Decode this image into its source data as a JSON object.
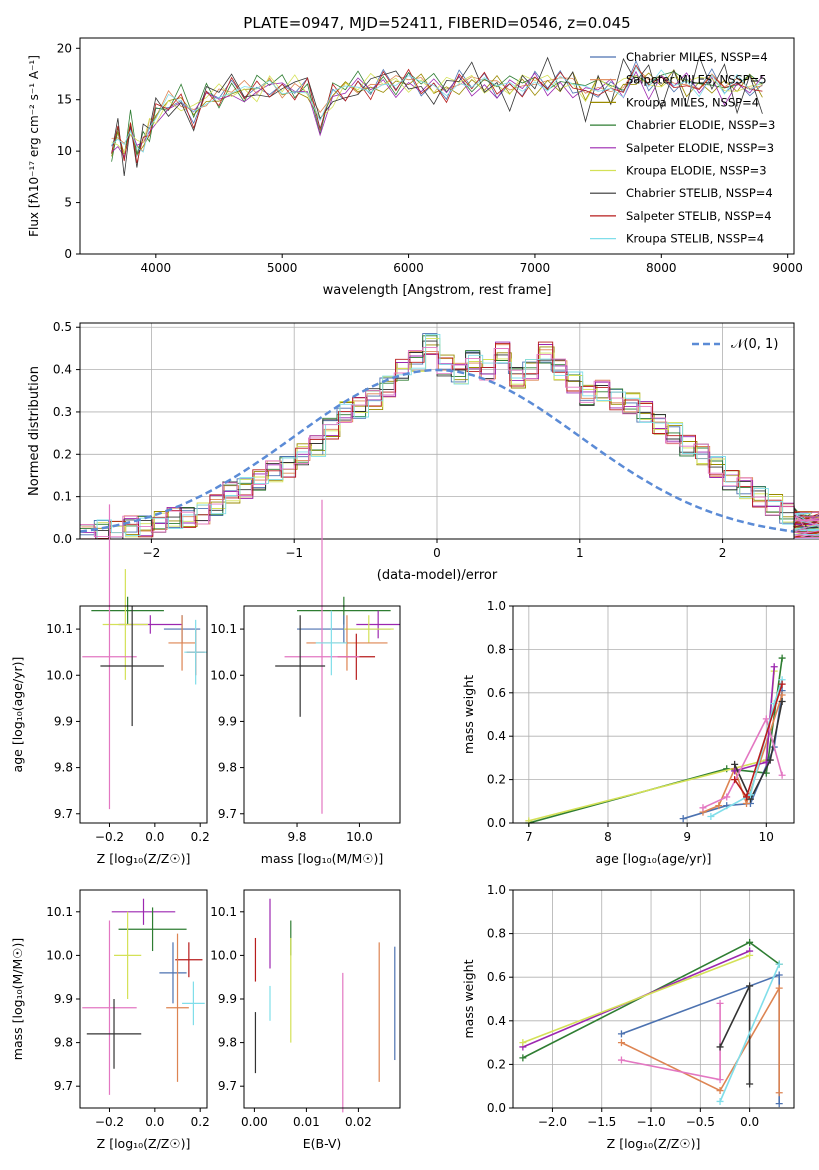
{
  "chart_data": [
    {
      "type": "line",
      "title": "PLATE=0947, MJD=52411, FIBERID=0546, z=0.045",
      "xlabel": "wavelength [Angstrom, rest frame]",
      "ylabel": "Flux [fλ10⁻¹⁷ erg cm⁻² s⁻¹ A⁻¹]",
      "xlim": [
        3400,
        9050
      ],
      "ylim": [
        0,
        21
      ],
      "xticks": [
        4000,
        5000,
        6000,
        7000,
        8000,
        9000
      ],
      "yticks": [
        0,
        5,
        10,
        15,
        20
      ],
      "legend_position": "top-right",
      "series": [
        {
          "name": "Chabrier MILES, NSSP=4",
          "color": "#4c72b0"
        },
        {
          "name": "Salpeter MILES, NSSP=5",
          "color": "#dd8452"
        },
        {
          "name": "Kroupa MILES, NSSP=4",
          "color": "#9a8a00"
        },
        {
          "name": "Chabrier ELODIE, NSSP=3",
          "color": "#2e7d32"
        },
        {
          "name": "Salpeter ELODIE, NSSP=3",
          "color": "#9c27b0"
        },
        {
          "name": "Kroupa ELODIE, NSSP=3",
          "color": "#d4e157"
        },
        {
          "name": "Chabrier STELIB, NSSP=4",
          "color": "#333333"
        },
        {
          "name": "Salpeter STELIB, NSSP=4",
          "color": "#b71c1c"
        },
        {
          "name": "Kroupa STELIB, NSSP=4",
          "color": "#80deea"
        }
      ],
      "data_x": [
        3650,
        3700,
        3750,
        3800,
        3850,
        3900,
        3950,
        4000,
        4100,
        4200,
        4300,
        4400,
        4500,
        4600,
        4700,
        4800,
        4900,
        5000,
        5100,
        5200,
        5300,
        5400,
        5500,
        5600,
        5700,
        5800,
        5900,
        6000,
        6100,
        6200,
        6300,
        6400,
        6500,
        6600,
        6700,
        6800,
        6900,
        7000,
        7100,
        7200,
        7300,
        7400,
        7500,
        7600,
        7700,
        7800,
        7900,
        8000,
        8100,
        8200,
        8300,
        8400,
        8500,
        8600,
        8700,
        8800
      ],
      "data_y": [
        10,
        11.5,
        9.5,
        12.5,
        10,
        11,
        12,
        13.5,
        14.5,
        15,
        13.5,
        15.5,
        15.2,
        16,
        15.5,
        16,
        16.5,
        16.2,
        16,
        16,
        12.5,
        15.5,
        16,
        16.5,
        16.2,
        16.8,
        16.3,
        16.8,
        16.5,
        16.3,
        16,
        16.8,
        16.5,
        16.5,
        16.2,
        16.2,
        16.5,
        16.8,
        16.5,
        16.6,
        16.5,
        15.5,
        16.5,
        16,
        16.2,
        17.5,
        16.5,
        16.8,
        17,
        16.5,
        16.5,
        16.8,
        16,
        16.2,
        16.5,
        16.2
      ]
    },
    {
      "type": "bar",
      "xlabel": "(data-model)/error",
      "ylabel": "Normed distribution",
      "xlim": [
        -2.5,
        2.5
      ],
      "ylim": [
        0,
        0.51
      ],
      "xticks": [
        -2,
        -1,
        0,
        1,
        2
      ],
      "yticks": [
        0.0,
        0.1,
        0.2,
        0.3,
        0.4,
        0.5
      ],
      "grid": true,
      "legend": "𝒩(0, 1)",
      "legend_position": "top-right",
      "bin_width": 0.1,
      "bin_start": -2.5,
      "hist": [
        0.01,
        0.02,
        0.02,
        0.03,
        0.03,
        0.04,
        0.05,
        0.05,
        0.06,
        0.08,
        0.11,
        0.12,
        0.14,
        0.16,
        0.17,
        0.2,
        0.22,
        0.26,
        0.3,
        0.31,
        0.33,
        0.36,
        0.4,
        0.42,
        0.46,
        0.41,
        0.39,
        0.42,
        0.4,
        0.44,
        0.38,
        0.4,
        0.44,
        0.4,
        0.37,
        0.34,
        0.35,
        0.33,
        0.32,
        0.3,
        0.27,
        0.25,
        0.22,
        0.2,
        0.17,
        0.14,
        0.12,
        0.1,
        0.08,
        0.06,
        0.05,
        0.04,
        0.04,
        0.03,
        0.02,
        0.02,
        0.02
      ],
      "normal_curve": {
        "mean": 0,
        "std": 1
      }
    },
    {
      "type": "scatter",
      "xlabel": "Z [log₁₀(Z/Z☉)]",
      "ylabel": "age  [log₁₀(age/yr)]",
      "xlim": [
        -0.33,
        0.23
      ],
      "ylim": [
        9.68,
        10.15
      ],
      "xticks": [
        -0.2,
        0.0,
        0.2
      ],
      "yticks": [
        9.7,
        9.8,
        9.9,
        10.0,
        10.1
      ],
      "points": [
        {
          "x": -0.12,
          "y": 10.14,
          "xerr": 0.16,
          "yerr": 0.03,
          "color": "#2e7d32"
        },
        {
          "x": -0.02,
          "y": 10.11,
          "xerr": 0.14,
          "yerr": 0.02,
          "color": "#9c27b0"
        },
        {
          "x": 0.12,
          "y": 10.1,
          "xerr": 0.08,
          "yerr": 0.03,
          "color": "#4c72b0"
        },
        {
          "x": -0.13,
          "y": 10.11,
          "xerr": 0.1,
          "yerr": 0.12,
          "color": "#d4e157"
        },
        {
          "x": 0.12,
          "y": 10.07,
          "xerr": 0.06,
          "yerr": 0.06,
          "color": "#dd8452"
        },
        {
          "x": 0.18,
          "y": 10.05,
          "xerr": 0.04,
          "yerr": 0.05,
          "color": "#b71c1c"
        },
        {
          "x": 0.18,
          "y": 10.05,
          "xerr": 0.05,
          "yerr": 0.07,
          "color": "#80deea"
        },
        {
          "x": -0.2,
          "y": 10.04,
          "xerr": 0.12,
          "yerr": 0.33,
          "color": "#e377c2"
        },
        {
          "x": -0.1,
          "y": 10.02,
          "xerr": 0.14,
          "yerr": 0.13,
          "color": "#333333"
        }
      ]
    },
    {
      "type": "scatter",
      "xlabel": "mass [log₁₀(M/M☉)]",
      "ylabel": "",
      "xlim": [
        9.63,
        10.13
      ],
      "ylim": [
        9.68,
        10.15
      ],
      "xticks": [
        9.8,
        10.0
      ],
      "yticks": [
        9.7,
        9.8,
        9.9,
        10.0,
        10.1
      ],
      "points": [
        {
          "x": 9.95,
          "y": 10.14,
          "xerr": 0.15,
          "yerr": 0.03,
          "color": "#2e7d32"
        },
        {
          "x": 10.06,
          "y": 10.11,
          "xerr": 0.07,
          "yerr": 0.03,
          "color": "#9c27b0"
        },
        {
          "x": 9.95,
          "y": 10.1,
          "xerr": 0.15,
          "yerr": 0.03,
          "color": "#4c72b0"
        },
        {
          "x": 10.03,
          "y": 10.1,
          "xerr": 0.08,
          "yerr": 0.03,
          "color": "#d4e157"
        },
        {
          "x": 9.96,
          "y": 10.07,
          "xerr": 0.13,
          "yerr": 0.06,
          "color": "#dd8452"
        },
        {
          "x": 9.99,
          "y": 10.04,
          "xerr": 0.06,
          "yerr": 0.05,
          "color": "#b71c1c"
        },
        {
          "x": 9.88,
          "y": 10.04,
          "xerr": 0.12,
          "yerr": 0.34,
          "color": "#e377c2"
        },
        {
          "x": 9.91,
          "y": 10.07,
          "xerr": 0.05,
          "yerr": 0.07,
          "color": "#80deea"
        },
        {
          "x": 9.81,
          "y": 10.02,
          "xerr": 0.08,
          "yerr": 0.11,
          "color": "#333333"
        }
      ]
    },
    {
      "type": "line",
      "xlabel": "age  [log₁₀(age/yr)]",
      "ylabel": "mass weight",
      "xlim": [
        6.8,
        10.35
      ],
      "ylim": [
        0,
        1.0
      ],
      "xticks": [
        7,
        8,
        9,
        10
      ],
      "yticks": [
        0.0,
        0.2,
        0.4,
        0.6,
        0.8,
        1.0
      ],
      "grid": true,
      "series": [
        {
          "color": "#2e7d32",
          "x": [
            7.0,
            9.5,
            10.0,
            10.2
          ],
          "y": [
            0.0,
            0.25,
            0.23,
            0.76
          ]
        },
        {
          "color": "#d4e157",
          "x": [
            7.0,
            10.0,
            10.1
          ],
          "y": [
            0.01,
            0.29,
            0.7
          ]
        },
        {
          "color": "#4c72b0",
          "x": [
            8.95,
            9.5,
            9.8,
            10.1,
            10.2
          ],
          "y": [
            0.02,
            0.08,
            0.09,
            0.35,
            0.61
          ]
        },
        {
          "color": "#dd8452",
          "x": [
            9.2,
            9.4,
            9.6,
            9.75,
            10.2
          ],
          "y": [
            0.05,
            0.08,
            0.25,
            0.09,
            0.59
          ]
        },
        {
          "color": "#9c27b0",
          "x": [
            9.6,
            10.0,
            10.1
          ],
          "y": [
            0.24,
            0.28,
            0.72
          ]
        },
        {
          "color": "#333333",
          "x": [
            9.6,
            9.8,
            10.05,
            10.2
          ],
          "y": [
            0.27,
            0.11,
            0.29,
            0.56
          ]
        },
        {
          "color": "#e377c2",
          "x": [
            9.2,
            9.5,
            10.0,
            10.2
          ],
          "y": [
            0.07,
            0.12,
            0.48,
            0.22
          ]
        },
        {
          "color": "#80deea",
          "x": [
            9.3,
            9.8,
            10.1,
            10.2
          ],
          "y": [
            0.03,
            0.13,
            0.55,
            0.66
          ]
        },
        {
          "color": "#b71c1c",
          "x": [
            9.6,
            9.75,
            10.2
          ],
          "y": [
            0.2,
            0.12,
            0.64
          ]
        }
      ]
    },
    {
      "type": "scatter",
      "xlabel": "Z [log₁₀(Z/Z☉)]",
      "ylabel": "mass [log₁₀(M/M☉)]",
      "xlim": [
        -0.33,
        0.23
      ],
      "ylim": [
        9.65,
        10.15
      ],
      "xticks": [
        -0.2,
        0.0,
        0.2
      ],
      "yticks": [
        9.7,
        9.8,
        9.9,
        10.0,
        10.1
      ],
      "points": [
        {
          "x": -0.05,
          "y": 10.1,
          "xerr": 0.14,
          "yerr": 0.03,
          "color": "#9c27b0"
        },
        {
          "x": -0.01,
          "y": 10.06,
          "xerr": 0.15,
          "yerr": 0.05,
          "color": "#2e7d32"
        },
        {
          "x": -0.12,
          "y": 10.0,
          "xerr": 0.06,
          "yerr": 0.1,
          "color": "#d4e157"
        },
        {
          "x": 0.15,
          "y": 9.99,
          "xerr": 0.06,
          "yerr": 0.04,
          "color": "#b71c1c"
        },
        {
          "x": 0.08,
          "y": 9.96,
          "xerr": 0.06,
          "yerr": 0.07,
          "color": "#4c72b0"
        },
        {
          "x": 0.17,
          "y": 9.89,
          "xerr": 0.05,
          "yerr": 0.05,
          "color": "#80deea"
        },
        {
          "x": 0.1,
          "y": 9.88,
          "xerr": 0.05,
          "yerr": 0.17,
          "color": "#dd8452"
        },
        {
          "x": -0.2,
          "y": 9.88,
          "xerr": 0.12,
          "yerr": 0.2,
          "color": "#e377c2"
        },
        {
          "x": -0.18,
          "y": 9.82,
          "xerr": 0.12,
          "yerr": 0.08,
          "color": "#333333"
        }
      ]
    },
    {
      "type": "scatter",
      "xlabel": "E(B-V)",
      "ylabel": "",
      "xlim": [
        -0.002,
        0.028
      ],
      "ylim": [
        9.65,
        10.15
      ],
      "xticks": [
        0.0,
        0.01,
        0.02
      ],
      "yticks": [
        9.7,
        9.8,
        9.9,
        10.0,
        10.1
      ],
      "points": [
        {
          "x": 0.0002,
          "y": 9.99,
          "yerr": 0.05,
          "color": "#b71c1c"
        },
        {
          "x": 0.0002,
          "y": 9.8,
          "yerr": 0.07,
          "color": "#333333"
        },
        {
          "x": 0.003,
          "y": 10.05,
          "yerr": 0.08,
          "color": "#9c27b0"
        },
        {
          "x": 0.003,
          "y": 9.89,
          "yerr": 0.04,
          "color": "#80deea"
        },
        {
          "x": 0.007,
          "y": 10.04,
          "yerr": 0.04,
          "color": "#2e7d32"
        },
        {
          "x": 0.007,
          "y": 9.92,
          "yerr": 0.12,
          "color": "#d4e157"
        },
        {
          "x": 0.017,
          "y": 9.8,
          "yerr": 0.16,
          "color": "#e377c2"
        },
        {
          "x": 0.024,
          "y": 9.87,
          "yerr": 0.16,
          "color": "#dd8452"
        },
        {
          "x": 0.027,
          "y": 9.89,
          "yerr": 0.13,
          "color": "#4c72b0"
        }
      ]
    },
    {
      "type": "line",
      "xlabel": "Z [log₁₀(Z/Z☉)]",
      "ylabel": "mass weight",
      "xlim": [
        -2.4,
        0.45
      ],
      "ylim": [
        0,
        1.0
      ],
      "xticks": [
        -2.0,
        -1.5,
        -1.0,
        -0.5,
        0.0
      ],
      "yticks": [
        0.0,
        0.2,
        0.4,
        0.6,
        0.8,
        1.0
      ],
      "grid": true,
      "series": [
        {
          "color": "#2e7d32",
          "x": [
            -2.3,
            0.0,
            0.3
          ],
          "y": [
            0.23,
            0.76,
            0.66
          ]
        },
        {
          "color": "#9c27b0",
          "x": [
            -2.3,
            0.0
          ],
          "y": [
            0.28,
            0.72
          ]
        },
        {
          "color": "#d4e157",
          "x": [
            -2.3,
            0.0
          ],
          "y": [
            0.3,
            0.7
          ]
        },
        {
          "color": "#4c72b0",
          "x": [
            -1.3,
            0.3,
            0.3
          ],
          "y": [
            0.34,
            0.61,
            0.02
          ]
        },
        {
          "color": "#dd8452",
          "x": [
            -1.3,
            -0.3,
            0.3,
            0.3
          ],
          "y": [
            0.3,
            0.08,
            0.55,
            0.07
          ]
        },
        {
          "color": "#e377c2",
          "x": [
            -1.3,
            -0.3,
            -0.3
          ],
          "y": [
            0.22,
            0.13,
            0.48
          ]
        },
        {
          "color": "#333333",
          "x": [
            -0.3,
            0.0,
            0.0
          ],
          "y": [
            0.28,
            0.56,
            0.11
          ]
        },
        {
          "color": "#80deea",
          "x": [
            -0.3,
            0.3
          ],
          "y": [
            0.03,
            0.66
          ]
        }
      ]
    }
  ]
}
